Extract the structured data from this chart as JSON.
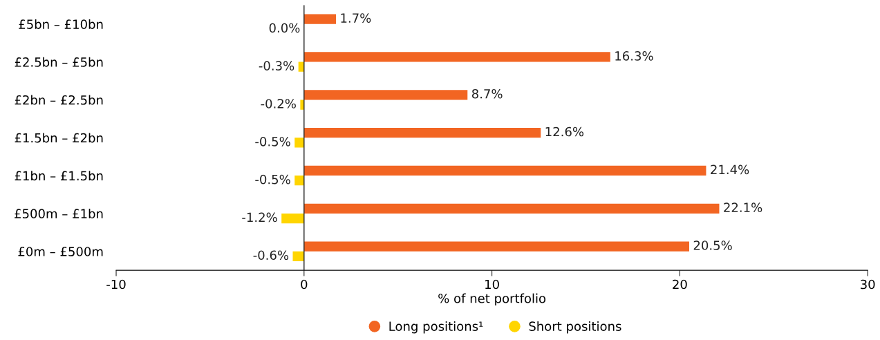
{
  "chart_data": {
    "type": "bar",
    "orientation": "horizontal",
    "categories": [
      "£5bn – £10bn",
      "£2.5bn – £5bn",
      "£2bn – £2.5bn",
      "£1.5bn – £2bn",
      "£1bn – £1.5bn",
      "£500m – £1bn",
      "£0m – £500m"
    ],
    "series": [
      {
        "name": "Long positions¹",
        "color": "#f26522",
        "values": [
          1.7,
          16.3,
          8.7,
          12.6,
          21.4,
          22.1,
          20.5
        ],
        "value_labels": [
          "1.7%",
          "16.3%",
          "8.7%",
          "12.6%",
          "21.4%",
          "22.1%",
          "20.5%"
        ]
      },
      {
        "name": "Short positions",
        "color": "#ffd500",
        "values": [
          0.0,
          -0.3,
          -0.2,
          -0.5,
          -0.5,
          -1.2,
          -0.6
        ],
        "value_labels": [
          "0.0%",
          "-0.3%",
          "-0.2%",
          "-0.5%",
          "-0.5%",
          "-1.2%",
          "-0.6%"
        ]
      }
    ],
    "xlabel": "% of net portfolio",
    "xlim": [
      -10,
      30
    ],
    "xticks": [
      -10,
      0,
      10,
      20,
      30
    ],
    "ref_lines": [
      {
        "axis": "x",
        "value": 0,
        "color": "#222222"
      }
    ],
    "legend": "bottom",
    "grid": false,
    "marker": "circle"
  }
}
